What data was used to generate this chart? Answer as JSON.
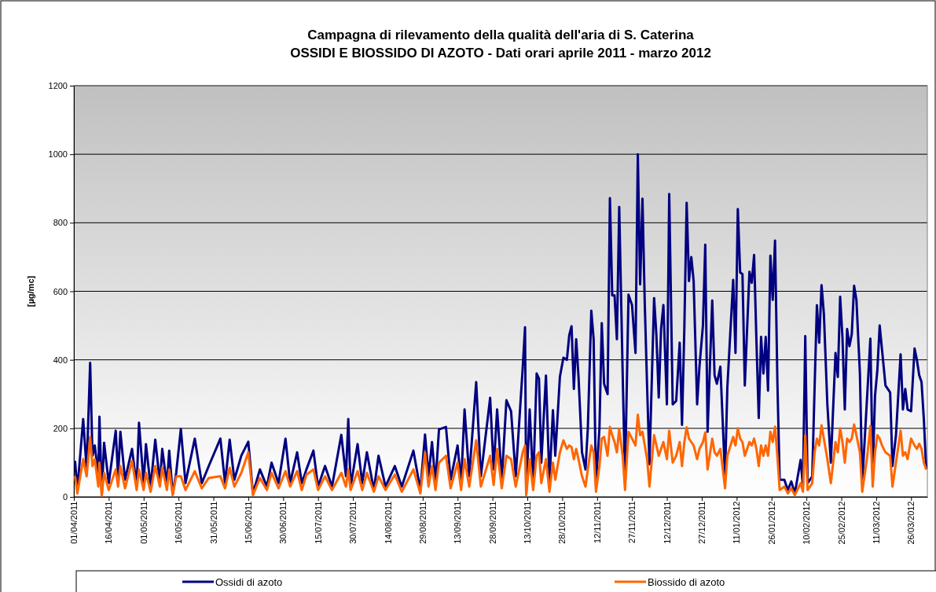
{
  "chart_data": {
    "type": "line",
    "title": "Campagna di rilevamento della qualità dell'aria di S. Caterina",
    "subtitle": "OSSIDI E BIOSSIDO DI AZOTO - Dati orari aprile 2011 - marzo 2012",
    "ylabel": "[µg/mc]",
    "x": [
      "2011-04-01T12:00",
      "2011-04-02T12:00",
      "2011-04-05",
      "2011-04-06T12:00",
      "2011-04-08",
      "2011-04-09",
      "2011-04-10",
      "2011-04-11T12:00",
      "2011-04-12",
      "2011-04-13",
      "2011-04-14",
      "2011-04-16",
      "2011-04-19",
      "2011-04-20",
      "2011-04-21",
      "2011-04-23",
      "2011-04-26",
      "2011-04-28",
      "2011-04-29",
      "2011-05-01",
      "2011-05-02",
      "2011-05-04",
      "2011-05-06",
      "2011-05-08",
      "2011-05-09",
      "2011-05-11",
      "2011-05-12",
      "2011-05-13T12:00",
      "2011-05-15",
      "2011-05-17",
      "2011-05-19",
      "2011-05-23",
      "2011-05-26",
      "2011-05-29",
      "2011-06-03",
      "2011-06-05",
      "2011-06-07",
      "2011-06-09",
      "2011-06-12",
      "2011-06-15",
      "2011-06-17",
      "2011-06-20",
      "2011-06-23",
      "2011-06-25",
      "2011-06-28",
      "2011-07-01",
      "2011-07-03",
      "2011-07-06",
      "2011-07-08",
      "2011-07-10",
      "2011-07-13",
      "2011-07-15",
      "2011-07-18",
      "2011-07-21",
      "2011-07-25",
      "2011-07-27",
      "2011-07-28",
      "2011-07-29",
      "2011-08-01",
      "2011-08-03",
      "2011-08-05",
      "2011-08-08",
      "2011-08-10",
      "2011-08-13",
      "2011-08-17",
      "2011-08-20",
      "2011-08-25",
      "2011-08-28",
      "2011-08-30",
      "2011-08-31T12:00",
      "2011-09-02",
      "2011-09-03T12:00",
      "2011-09-05",
      "2011-09-08",
      "2011-09-10",
      "2011-09-13",
      "2011-09-14T12:00",
      "2011-09-16",
      "2011-09-18",
      "2011-09-21",
      "2011-09-23",
      "2011-09-27",
      "2011-09-28T12:00",
      "2011-09-30",
      "2011-10-02",
      "2011-10-04",
      "2011-10-06",
      "2011-10-08",
      "2011-10-11",
      "2011-10-12",
      "2011-10-12T12:00",
      "2011-10-14",
      "2011-10-15T12:00",
      "2011-10-17",
      "2011-10-18",
      "2011-10-19",
      "2011-10-21",
      "2011-10-22T12:00",
      "2011-10-24",
      "2011-10-25",
      "2011-10-27",
      "2011-10-28T12:00",
      "2011-10-30",
      "2011-10-31",
      "2011-11-01",
      "2011-11-02",
      "2011-11-03",
      "2011-11-04",
      "2011-11-05T12:00",
      "2011-11-07",
      "2011-11-08",
      "2011-11-09T12:00",
      "2011-11-10T12:00",
      "2011-11-11T12:00",
      "2011-11-13",
      "2011-11-14",
      "2011-11-15",
      "2011-11-16T12:00",
      "2011-11-17T12:00",
      "2011-11-18T12:00",
      "2011-11-19T12:00",
      "2011-11-20T12:00",
      "2011-11-21T12:00",
      "2011-11-23",
      "2011-11-24",
      "2011-11-25T12:00",
      "2011-11-27",
      "2011-11-28T12:00",
      "2011-11-29T12:00",
      "2011-11-30T12:00",
      "2011-12-01T12:00",
      "2011-12-02T12:00",
      "2011-12-03T12:00",
      "2011-12-04T12:00",
      "2011-12-06T12:00",
      "2011-12-07T12:00",
      "2011-12-08T12:00",
      "2011-12-09T12:00",
      "2011-12-10T12:00",
      "2011-12-12",
      "2011-12-13",
      "2011-12-14T12:00",
      "2011-12-16",
      "2011-12-17T12:00",
      "2011-12-18T12:00",
      "2011-12-19T12:00",
      "2011-12-20T12:00",
      "2011-12-21T12:00",
      "2011-12-22T12:00",
      "2011-12-23T12:00",
      "2011-12-25",
      "2011-12-26",
      "2011-12-27T12:00",
      "2011-12-28T12:00",
      "2011-12-29T12:00",
      "2011-12-31T12:00",
      "2012-01-01T12:00",
      "2012-01-02T12:00",
      "2012-01-04",
      "2012-01-06",
      "2012-01-07",
      "2012-01-09T12:00",
      "2012-01-10T12:00",
      "2012-01-11T12:00",
      "2012-01-12T12:00",
      "2012-01-13T12:00",
      "2012-01-14T12:00",
      "2012-01-16T12:00",
      "2012-01-17T12:00",
      "2012-01-18T12:00",
      "2012-01-19T12:00",
      "2012-01-20T12:00",
      "2012-01-21T12:00",
      "2012-01-22T12:00",
      "2012-01-23T12:00",
      "2012-01-24T12:00",
      "2012-01-25T12:00",
      "2012-01-26T12:00",
      "2012-01-27T12:00",
      "2012-01-28T12:00",
      "2012-01-29T12:00",
      "2012-01-31T12:00",
      "2012-02-02",
      "2012-02-03T12:00",
      "2012-02-05",
      "2012-02-07T12:00",
      "2012-02-08T12:00",
      "2012-02-09T12:00",
      "2012-02-10T12:00",
      "2012-02-12T12:00",
      "2012-02-13T12:00",
      "2012-02-14T12:00",
      "2012-02-15T12:00",
      "2012-02-16T12:00",
      "2012-02-17T12:00",
      "2012-02-19",
      "2012-02-20T12:00",
      "2012-02-22T12:00",
      "2012-02-23T12:00",
      "2012-02-24T12:00",
      "2012-02-25T12:00",
      "2012-02-26T12:00",
      "2012-02-27T12:00",
      "2012-02-28T12:00",
      "2012-02-29T12:00",
      "2012-03-01T12:00",
      "2012-03-02T12:00",
      "2012-03-04",
      "2012-03-05",
      "2012-03-07",
      "2012-03-08T12:00",
      "2012-03-09T12:00",
      "2012-03-10T12:00",
      "2012-03-11T12:00",
      "2012-03-12T12:00",
      "2012-03-13T12:00",
      "2012-03-15",
      "2012-03-17",
      "2012-03-18",
      "2012-03-19T12:00",
      "2012-03-21T12:00",
      "2012-03-22T12:00",
      "2012-03-23T12:00",
      "2012-03-24T12:00",
      "2012-03-26",
      "2012-03-27T12:00",
      "2012-03-28T12:00",
      "2012-03-29T12:00",
      "2012-03-30T12:00",
      "2012-03-31T12:00",
      "2012-04-01T12:00"
    ],
    "series": [
      {
        "name": "Ossidi di azoto",
        "color": "#000080",
        "values": [
          105,
          20,
          227,
          80,
          391,
          120,
          150,
          60,
          234,
          5,
          158,
          40,
          193,
          60,
          190,
          50,
          140,
          30,
          216,
          40,
          154,
          30,
          167,
          40,
          140,
          35,
          135,
          8,
          70,
          198,
          40,
          170,
          40,
          90,
          170,
          40,
          167,
          50,
          120,
          161,
          10,
          80,
          30,
          100,
          40,
          170,
          40,
          130,
          40,
          80,
          135,
          30,
          90,
          30,
          181,
          60,
          227,
          30,
          154,
          40,
          130,
          20,
          120,
          30,
          90,
          30,
          135,
          20,
          182,
          60,
          160,
          40,
          197,
          204,
          50,
          150,
          40,
          255,
          60,
          335,
          60,
          289,
          80,
          255,
          50,
          282,
          250,
          60,
          376,
          495,
          10,
          255,
          40,
          360,
          345,
          100,
          354,
          44,
          253,
          120,
          351,
          406,
          400,
          471,
          498,
          315,
          460,
          350,
          130,
          80,
          200,
          543,
          460,
          40,
          200,
          507,
          330,
          300,
          872,
          588,
          588,
          460,
          846,
          355,
          50,
          590,
          560,
          420,
          1000,
          620,
          870,
          560,
          320,
          95,
          580,
          470,
          290,
          490,
          560,
          270,
          884,
          270,
          280,
          450,
          210,
          490,
          858,
          630,
          700,
          630,
          270,
          380,
          500,
          736,
          190,
          573,
          355,
          330,
          380,
          60,
          320,
          633,
          420,
          840,
          655,
          650,
          325,
          657,
          625,
          706,
          456,
          230,
          467,
          360,
          467,
          310,
          704,
          575,
          748,
          340,
          50,
          50,
          20,
          45,
          10,
          108,
          30,
          469,
          40,
          60,
          315,
          559,
          450,
          618,
          535,
          270,
          100,
          420,
          350,
          584,
          465,
          255,
          490,
          440,
          475,
          616,
          575,
          360,
          40,
          280,
          462,
          75,
          295,
          370,
          500,
          430,
          325,
          305,
          90,
          180,
          416,
          255,
          315,
          255,
          250,
          433,
          400,
          355,
          335,
          225,
          80
        ]
      },
      {
        "name": "Biossido di azoto",
        "color": "#ff6600",
        "values": [
          60,
          10,
          110,
          60,
          175,
          90,
          110,
          30,
          100,
          3,
          70,
          20,
          80,
          30,
          90,
          25,
          105,
          20,
          80,
          20,
          70,
          15,
          90,
          30,
          85,
          20,
          80,
          5,
          60,
          60,
          20,
          75,
          25,
          55,
          60,
          25,
          85,
          30,
          70,
          130,
          5,
          55,
          20,
          70,
          25,
          75,
          30,
          75,
          20,
          65,
          80,
          20,
          60,
          20,
          70,
          30,
          80,
          20,
          75,
          20,
          70,
          15,
          60,
          20,
          65,
          15,
          80,
          10,
          130,
          30,
          90,
          20,
          100,
          120,
          25,
          100,
          20,
          110,
          30,
          165,
          30,
          120,
          35,
          140,
          25,
          120,
          110,
          30,
          130,
          150,
          5,
          110,
          20,
          120,
          130,
          40,
          110,
          15,
          100,
          50,
          130,
          165,
          140,
          150,
          145,
          110,
          140,
          110,
          60,
          30,
          80,
          150,
          130,
          15,
          90,
          170,
          175,
          120,
          204,
          180,
          160,
          130,
          198,
          120,
          20,
          190,
          170,
          150,
          240,
          180,
          190,
          150,
          110,
          30,
          180,
          150,
          120,
          140,
          160,
          110,
          193,
          100,
          120,
          160,
          90,
          160,
          203,
          170,
          160,
          150,
          110,
          140,
          160,
          188,
          80,
          170,
          130,
          120,
          140,
          25,
          120,
          175,
          150,
          200,
          170,
          160,
          120,
          160,
          150,
          170,
          140,
          90,
          150,
          120,
          150,
          120,
          190,
          160,
          205,
          120,
          20,
          30,
          10,
          25,
          5,
          40,
          15,
          180,
          20,
          40,
          130,
          170,
          150,
          209,
          170,
          110,
          40,
          160,
          130,
          200,
          160,
          100,
          170,
          160,
          170,
          211,
          180,
          130,
          15,
          110,
          207,
          30,
          130,
          180,
          170,
          150,
          130,
          120,
          30,
          100,
          193,
          120,
          130,
          110,
          170,
          150,
          140,
          155,
          140,
          100,
          80
        ]
      }
    ],
    "xlim": [
      "2011-04-01",
      "2012-04-02"
    ],
    "xticks": [
      {
        "value": "2011-04-01",
        "label": "01/04/2011"
      },
      {
        "value": "2011-04-16",
        "label": "16/04/2011"
      },
      {
        "value": "2011-05-01",
        "label": "01/05/2011"
      },
      {
        "value": "2011-05-16",
        "label": "16/05/2011"
      },
      {
        "value": "2011-05-31",
        "label": "31/05/2011"
      },
      {
        "value": "2011-06-15",
        "label": "15/06/2011"
      },
      {
        "value": "2011-06-30",
        "label": "30/06/2011"
      },
      {
        "value": "2011-07-15",
        "label": "15/07/2011"
      },
      {
        "value": "2011-07-30",
        "label": "30/07/2011"
      },
      {
        "value": "2011-08-14",
        "label": "14/08/2011"
      },
      {
        "value": "2011-08-29",
        "label": "29/08/2011"
      },
      {
        "value": "2011-09-13",
        "label": "13/09/2011"
      },
      {
        "value": "2011-09-28",
        "label": "28/09/2011"
      },
      {
        "value": "2011-10-13",
        "label": "13/10/2011"
      },
      {
        "value": "2011-10-28",
        "label": "28/10/2011"
      },
      {
        "value": "2011-11-12",
        "label": "12/11/2011"
      },
      {
        "value": "2011-11-27",
        "label": "27/11/2011"
      },
      {
        "value": "2011-12-12",
        "label": "12/12/2011"
      },
      {
        "value": "2011-12-27",
        "label": "27/12/2011"
      },
      {
        "value": "2012-01-11",
        "label": "11/01/2012"
      },
      {
        "value": "2012-01-26",
        "label": "26/01/2012"
      },
      {
        "value": "2012-02-10",
        "label": "10/02/2012"
      },
      {
        "value": "2012-02-25",
        "label": "25/02/2012"
      },
      {
        "value": "2012-03-11",
        "label": "11/03/2012"
      },
      {
        "value": "2012-03-26",
        "label": "26/03/2012"
      }
    ],
    "ylim": [
      0,
      1200
    ],
    "yticks": [
      0,
      200,
      400,
      600,
      800,
      1000,
      1200
    ],
    "grid": "y",
    "legend": "bottom",
    "line_style": "solid",
    "marker": "none"
  }
}
